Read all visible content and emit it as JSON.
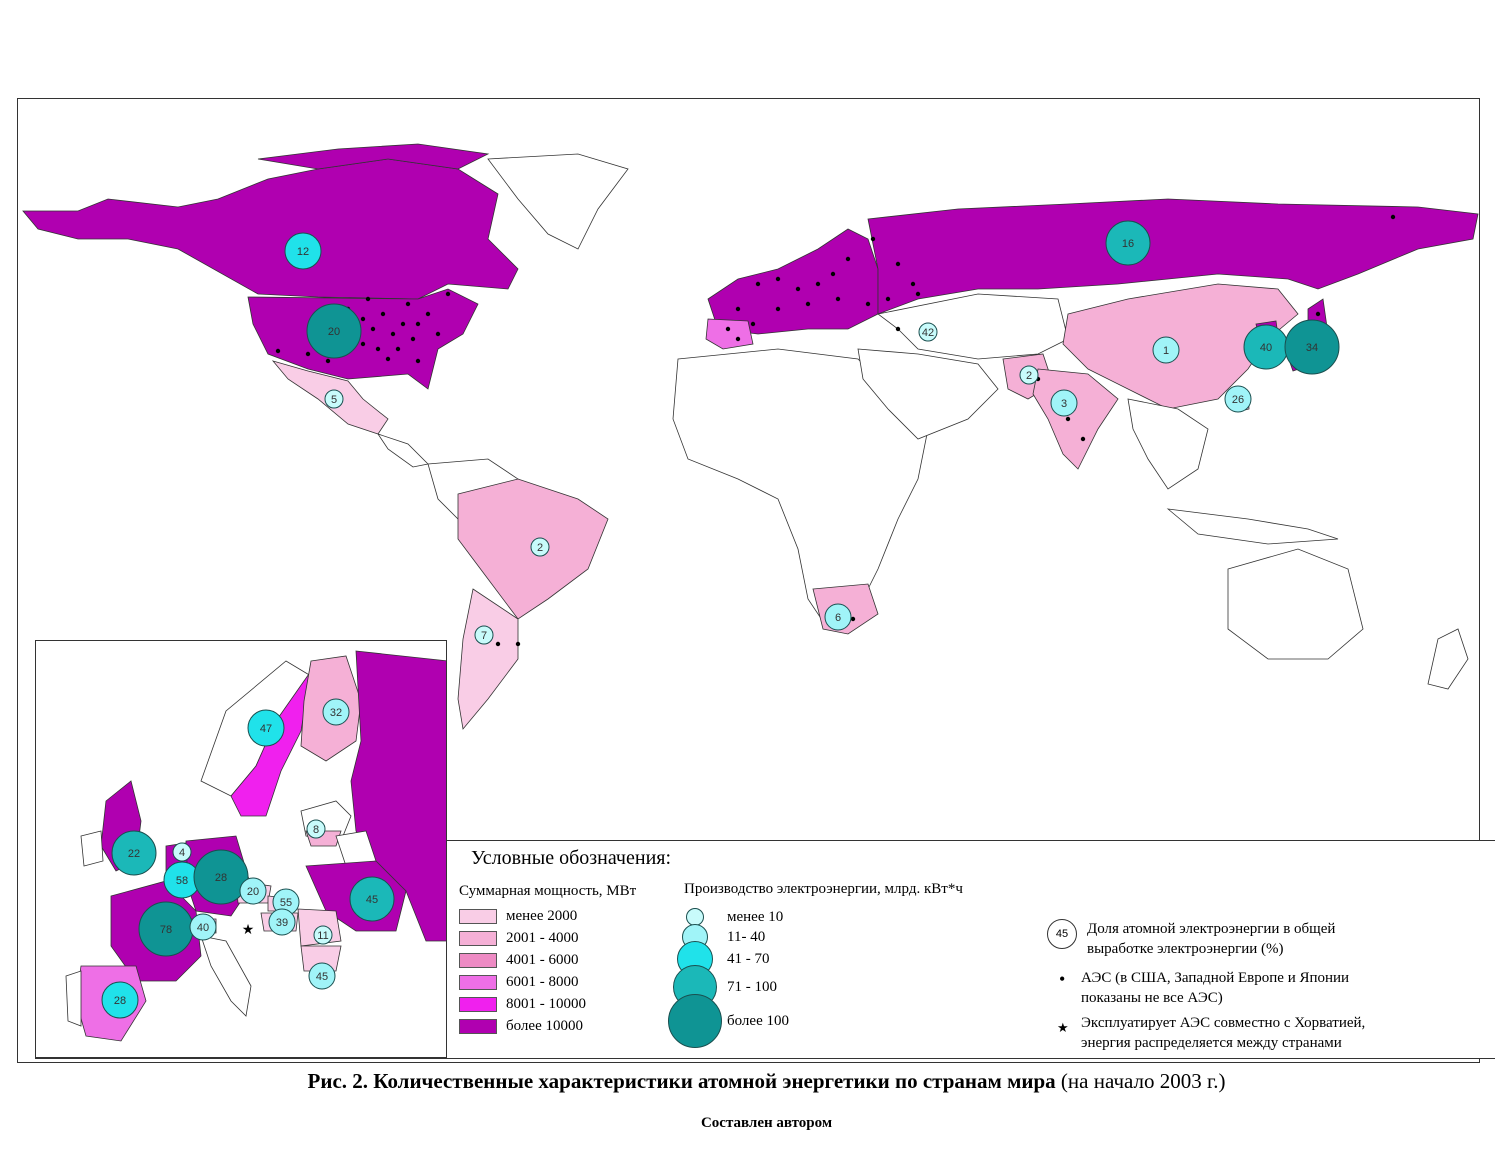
{
  "legend": {
    "title": "Условные обозначения:",
    "capacity_title": "Суммарная мощность, МВт",
    "capacity_classes": [
      {
        "label": "менее 2000",
        "color": "#f9cde6"
      },
      {
        "label": "2001 - 4000",
        "color": "#f5b0d6"
      },
      {
        "label": "4001 - 6000",
        "color": "#ee8bc4"
      },
      {
        "label": "6001 - 8000",
        "color": "#ee6fe6"
      },
      {
        "label": "8001 - 10000",
        "color": "#f020ee"
      },
      {
        "label": "более 10000",
        "color": "#b000b0"
      }
    ],
    "production_title": "Производство электроэнергии, млрд. кВт*ч",
    "production_classes": [
      {
        "label": "менее 10",
        "color": "#c8fbfb"
      },
      {
        "label": "11- 40",
        "color": "#a0f4f8"
      },
      {
        "label": "41 - 70",
        "color": "#20e2ea"
      },
      {
        "label": "71 - 100",
        "color": "#1bb8b8"
      },
      {
        "label": "более 100",
        "color": "#0f9494"
      }
    ],
    "share_sample": "45",
    "share_label_1": "Доля атомной электроэнергии в общей",
    "share_label_2": "выработке электроэнергии (%)",
    "npp_label_1": "АЭС (в США, Западной Европе и Японии",
    "npp_label_2": "показаны не все АЭС)",
    "star_label_1": "Эксплуатирует АЭС совместно с Хорватией,",
    "star_label_2": "энергия распределяется между странами"
  },
  "caption": {
    "prefix": "Рис. 2.",
    "title": "Количественные характеристики атомной энергетики по странам мира",
    "suffix": "(на начало 2003 г.)",
    "author": "Составлен автором"
  },
  "world_labels": [
    {
      "name": "canada",
      "value": "12",
      "prod": 2
    },
    {
      "name": "usa",
      "value": "20",
      "prod": 4
    },
    {
      "name": "mexico",
      "value": "5",
      "prod": 0
    },
    {
      "name": "brazil",
      "value": "2",
      "prod": 0
    },
    {
      "name": "argentina",
      "value": "7",
      "prod": 0
    },
    {
      "name": "south-africa",
      "value": "6",
      "prod": 1
    },
    {
      "name": "russia",
      "value": "16",
      "prod": 3
    },
    {
      "name": "armenia",
      "value": "42",
      "prod": 0
    },
    {
      "name": "pakistan",
      "value": "2",
      "prod": 0
    },
    {
      "name": "india",
      "value": "3",
      "prod": 1
    },
    {
      "name": "china",
      "value": "1",
      "prod": 1
    },
    {
      "name": "korea",
      "value": "40",
      "prod": 3
    },
    {
      "name": "japan",
      "value": "34",
      "prod": 4
    },
    {
      "name": "taiwan",
      "value": "26",
      "prod": 1
    }
  ],
  "europe_labels": [
    {
      "name": "sweden",
      "value": "47",
      "prod": 2
    },
    {
      "name": "finland",
      "value": "32",
      "prod": 1
    },
    {
      "name": "lithuania",
      "value": "8",
      "prod": 0
    },
    {
      "name": "uk",
      "value": "22",
      "prod": 3
    },
    {
      "name": "netherlands",
      "value": "4",
      "prod": 0
    },
    {
      "name": "belgium",
      "value": "58",
      "prod": 2
    },
    {
      "name": "germany",
      "value": "28",
      "prod": 4
    },
    {
      "name": "czech",
      "value": "20",
      "prod": 1
    },
    {
      "name": "slovakia",
      "value": "55",
      "prod": 1
    },
    {
      "name": "hungary",
      "value": "39",
      "prod": 1
    },
    {
      "name": "ukraine",
      "value": "45",
      "prod": 3
    },
    {
      "name": "romania",
      "value": "11",
      "prod": 0
    },
    {
      "name": "bulgaria",
      "value": "45",
      "prod": 1
    },
    {
      "name": "france",
      "value": "78",
      "prod": 4
    },
    {
      "name": "switzerland",
      "value": "40",
      "prod": 1
    },
    {
      "name": "spain",
      "value": "28",
      "prod": 2
    }
  ]
}
